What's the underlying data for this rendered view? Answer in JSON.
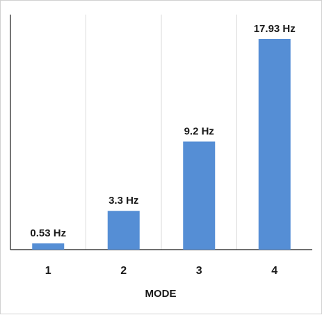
{
  "chart_data": {
    "type": "bar",
    "categories": [
      "1",
      "2",
      "3",
      "4"
    ],
    "values": [
      0.53,
      3.3,
      9.2,
      17.93
    ],
    "data_labels": [
      "0.53 Hz",
      "3.3 Hz",
      "9.2 Hz",
      "17.93 Hz"
    ],
    "xlabel": "MODE",
    "ylabel": "",
    "ylim": [
      0,
      20
    ],
    "grid": "vertical",
    "legend": "none",
    "bar_color": "#558ed5",
    "grid_color": "#d9d9d9",
    "axis_color": "#1a1a1a"
  }
}
